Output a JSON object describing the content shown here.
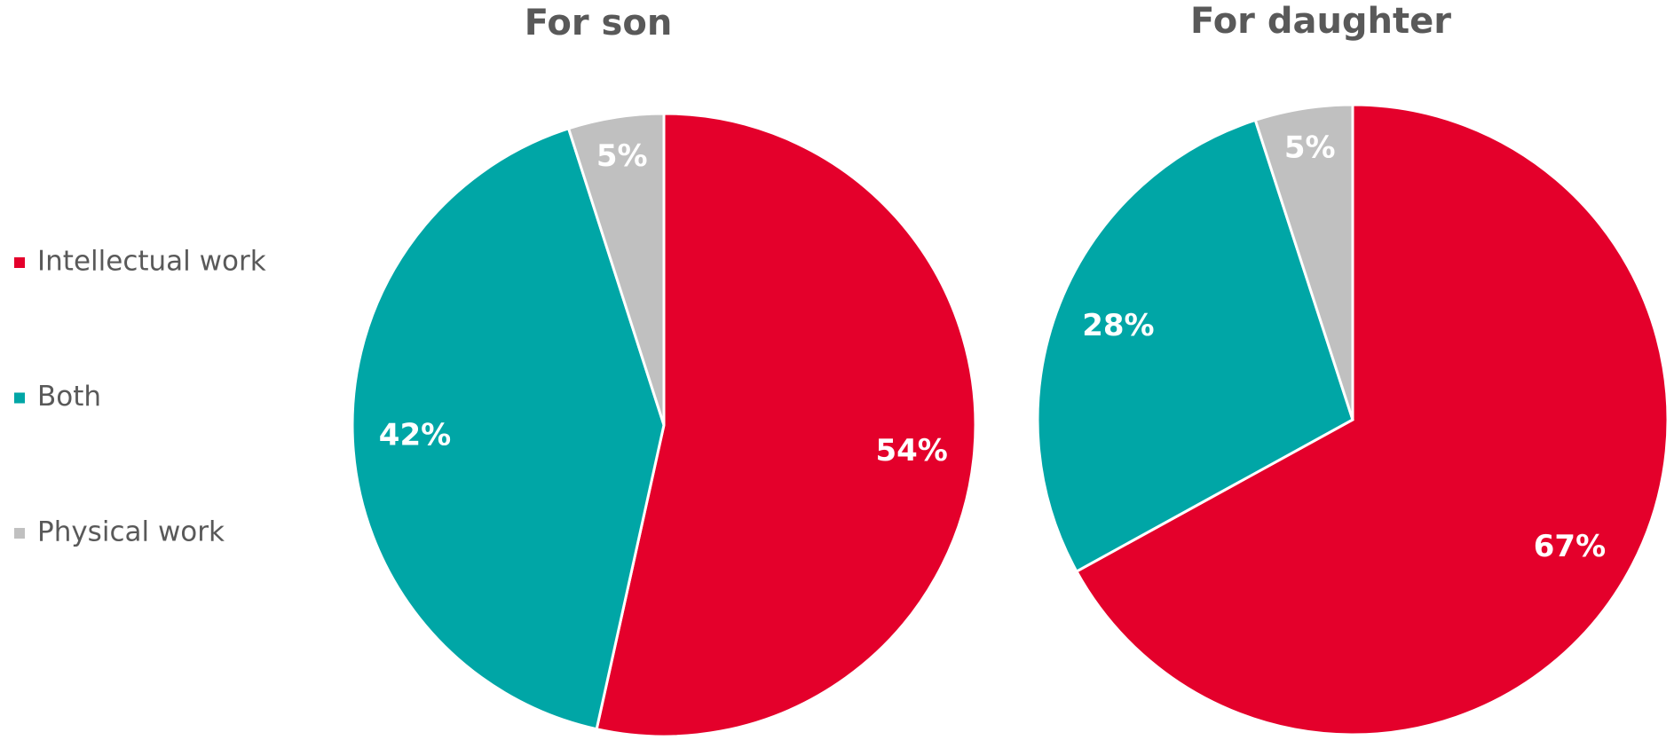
{
  "chart_data": [
    {
      "type": "pie",
      "title": "For son",
      "categories": [
        "Intellectual work",
        "Both",
        "Physical work"
      ],
      "values": [
        54,
        42,
        5
      ],
      "value_labels": [
        "54%",
        "42%",
        "5%"
      ],
      "colors": [
        "#e4002b",
        "#00a6a6",
        "#c0c0c0"
      ]
    },
    {
      "type": "pie",
      "title": "For daughter",
      "categories": [
        "Intellectual work",
        "Both",
        "Physical work"
      ],
      "values": [
        67,
        28,
        5
      ],
      "value_labels": [
        "67%",
        "28%",
        "5%"
      ],
      "colors": [
        "#e4002b",
        "#00a6a6",
        "#c0c0c0"
      ]
    }
  ]
}
